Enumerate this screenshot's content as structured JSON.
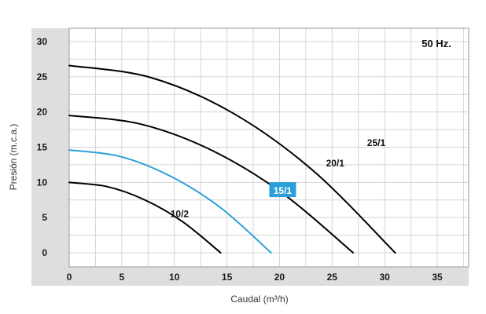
{
  "chart_data": {
    "type": "line",
    "frequency_label": "50 Hz.",
    "xlabel": "Caudal (m³/h)",
    "ylabel": "Presión (m.c.a.)",
    "xlim": [
      0,
      38
    ],
    "ylim": [
      0,
      31
    ],
    "x_ticks": [
      0,
      5,
      10,
      15,
      20,
      25,
      30,
      35
    ],
    "y_ticks": [
      0,
      5,
      10,
      15,
      20,
      25,
      30
    ],
    "grid": true,
    "highlight_color": "#2a9fd8",
    "series": [
      {
        "name": "10/2",
        "color": "#000000",
        "highlighted": false,
        "x": [
          0,
          3.6,
          7.2,
          10.8,
          14.4
        ],
        "y": [
          10,
          9.4,
          7.5,
          4.4,
          0
        ]
      },
      {
        "name": "15/1",
        "color": "#2a9fd8",
        "highlighted": true,
        "x": [
          0,
          4.8,
          9.6,
          14.4,
          19.2
        ],
        "y": [
          14.6,
          13.7,
          10.9,
          6.4,
          0
        ]
      },
      {
        "name": "20/1",
        "color": "#000000",
        "highlighted": false,
        "x": [
          0,
          6.75,
          13.5,
          20.25,
          27
        ],
        "y": [
          19.5,
          18.3,
          14.6,
          8.5,
          0
        ]
      },
      {
        "name": "25/1",
        "color": "#000000",
        "highlighted": false,
        "x": [
          0,
          7.75,
          15.5,
          23.25,
          31
        ],
        "y": [
          26.6,
          24.9,
          19.9,
          11.6,
          0
        ]
      }
    ]
  }
}
